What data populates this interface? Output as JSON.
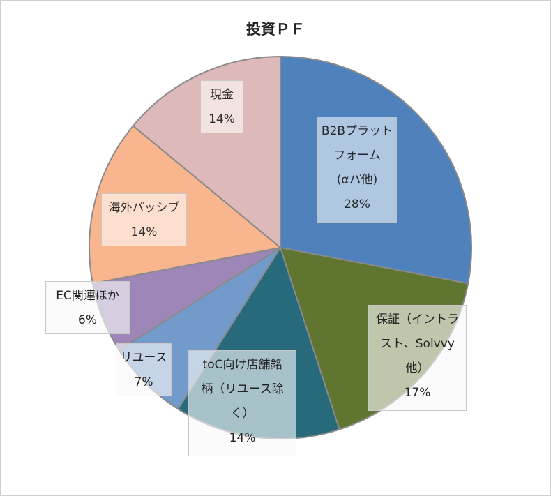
{
  "chart_data": {
    "type": "pie",
    "title": "投資ＰＦ",
    "start_angle_deg": 0,
    "direction": "clockwise",
    "slices": [
      {
        "name": "B2Bプラットフォーム（αパ他）",
        "label_lines": [
          "B2Bプラット",
          "フォーム",
          "(αパ他)"
        ],
        "pct_label": "28%",
        "value": 28,
        "color": "#4F81BD",
        "label_bg": "#B9CDE5"
      },
      {
        "name": "保証（イントラスト、Solvvy他）",
        "label_lines": [
          "保証（イントラ",
          "スト、Solvvy",
          "他）"
        ],
        "pct_label": "17%",
        "value": 17,
        "color": "#5F7530",
        "label_bg": "#F9F9F9"
      },
      {
        "name": "toC向け店舗銘柄（リユース除く）",
        "label_lines": [
          "toC向け店舗銘",
          "柄（リユース除",
          "く）"
        ],
        "pct_label": "14%",
        "value": 14,
        "color": "#276A7C",
        "label_bg": "#F9F9F9"
      },
      {
        "name": "リユース",
        "label_lines": [
          "リユース"
        ],
        "pct_label": "7%",
        "value": 7,
        "color": "#729ACA",
        "label_bg": "#F9F9F9"
      },
      {
        "name": "EC関連ほか",
        "label_lines": [
          "EC関連ほか"
        ],
        "pct_label": "6%",
        "value": 6,
        "color": "#9E86B9",
        "label_bg": "#F9F9F9"
      },
      {
        "name": "海外パッシブ",
        "label_lines": [
          "海外パッシブ"
        ],
        "pct_label": "14%",
        "value": 14,
        "color": "#F9B58D",
        "label_bg": "#FDE3D5"
      },
      {
        "name": "現金",
        "label_lines": [
          "現金"
        ],
        "pct_label": "14%",
        "value": 14,
        "color": "#DEB9B9",
        "label_bg": "#F4E6E6"
      }
    ]
  }
}
